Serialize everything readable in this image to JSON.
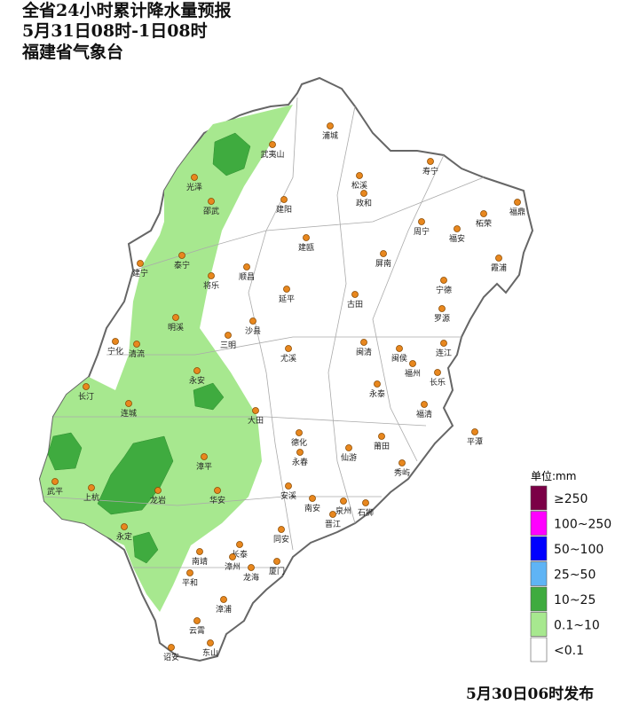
{
  "header": {
    "title_lines": [
      "全省24小时累计降水量预报",
      "5月31日08时-1日08时",
      "福建省气象台"
    ]
  },
  "cities": [
    "浦城",
    "武夷山",
    "光泽",
    "松溪",
    "寿宁",
    "邵武",
    "建阳",
    "政和",
    "柘荣",
    "福鼎",
    "周宁",
    "福安",
    "建瓯",
    "屏南",
    "霞浦",
    "建宁",
    "泰宁",
    "将乐",
    "顺昌",
    "宁德",
    "延平",
    "古田",
    "罗源",
    "明溪",
    "沙县",
    "三明",
    "宁化",
    "清流",
    "尤溪",
    "闽清",
    "闽侯",
    "连江",
    "福州",
    "长乐",
    "永安",
    "长汀",
    "永泰",
    "连城",
    "福清",
    "大田",
    "平潭",
    "德化",
    "莆田",
    "仙游",
    "永春",
    "漳平",
    "秀屿",
    "武平",
    "上杭",
    "龙岩",
    "安溪",
    "华安",
    "南安",
    "泉州",
    "石狮",
    "晋江",
    "永定",
    "同安",
    "长泰",
    "南靖",
    "漳州",
    "厦门",
    "龙海",
    "平和",
    "漳浦",
    "云霄",
    "诏安",
    "东山"
  ],
  "legend": {
    "title": "单位:mm",
    "items": [
      {
        "label": "≥250",
        "color": "#7b0046"
      },
      {
        "label": "100~250",
        "color": "#ff00ff"
      },
      {
        "label": "50~100",
        "color": "#0000ff"
      },
      {
        "label": "25~50",
        "color": "#5fb4f5"
      },
      {
        "label": "10~25",
        "color": "#3fab3f"
      },
      {
        "label": "0.1~10",
        "color": "#a7e88f"
      },
      {
        "label": "<0.1",
        "color": "#ffffff"
      }
    ]
  },
  "footer": {
    "text": "5月30日06时发布"
  }
}
